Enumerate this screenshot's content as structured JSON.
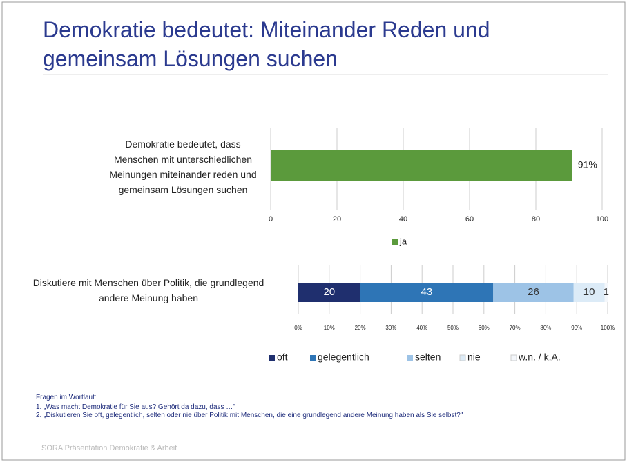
{
  "slide": {
    "title": "Demokratie bedeutet: Miteinander Reden und gemeinsam Lösungen suchen",
    "notes": [
      "Fragen im Wortlaut:",
      "1. „Was macht Demokratie für Sie aus? Gehört da dazu, dass …\"",
      "2. „Diskutieren Sie oft, gelegentlich, selten oder nie über Politik mit Menschen, die eine grundlegend andere Meinung haben als Sie selbst?\""
    ],
    "footer": "SORA Präsentation Demokratie & Arbeit"
  },
  "chart_data": [
    {
      "type": "bar",
      "orientation": "horizontal",
      "categories": [
        "Demokratie bedeutet, dass Menschen mit unterschiedlichen Meinungen miteinander reden und gemeinsam Lösungen suchen"
      ],
      "series": [
        {
          "name": "ja",
          "color": "#5b9a3c",
          "values": [
            91
          ],
          "value_labels": [
            "91%"
          ]
        }
      ],
      "xlim": [
        0,
        100
      ],
      "xticks": [
        0,
        20,
        40,
        60,
        80,
        100
      ],
      "grid": true,
      "legend": "bottom"
    },
    {
      "type": "stacked_bar",
      "orientation": "horizontal",
      "categories": [
        "Diskutiere mit Menschen über Politik, die grundlegend andere Meinung haben"
      ],
      "series": [
        {
          "name": "oft",
          "color": "#1f2f6e",
          "values": [
            20
          ]
        },
        {
          "name": "gelegentlich",
          "color": "#2e75b6",
          "values": [
            43
          ]
        },
        {
          "name": "selten",
          "color": "#9dc3e6",
          "values": [
            26
          ]
        },
        {
          "name": "nie",
          "color": "#dcebf7",
          "values": [
            10
          ]
        },
        {
          "name": "w.n. / k.A.",
          "color": "#f4f7fb",
          "values": [
            1
          ]
        }
      ],
      "xlim": [
        0,
        100
      ],
      "xticks": [
        {
          "value": 0,
          "label": "0%"
        },
        {
          "value": 10,
          "label": "10%"
        },
        {
          "value": 20,
          "label": "20%"
        },
        {
          "value": 30,
          "label": "30%"
        },
        {
          "value": 40,
          "label": "40%"
        },
        {
          "value": 50,
          "label": "50%"
        },
        {
          "value": 60,
          "label": "60%"
        },
        {
          "value": 70,
          "label": "70%"
        },
        {
          "value": 80,
          "label": "80%"
        },
        {
          "value": 90,
          "label": "90%"
        },
        {
          "value": 100,
          "label": "100%"
        }
      ],
      "grid": true,
      "legend": "bottom"
    }
  ]
}
